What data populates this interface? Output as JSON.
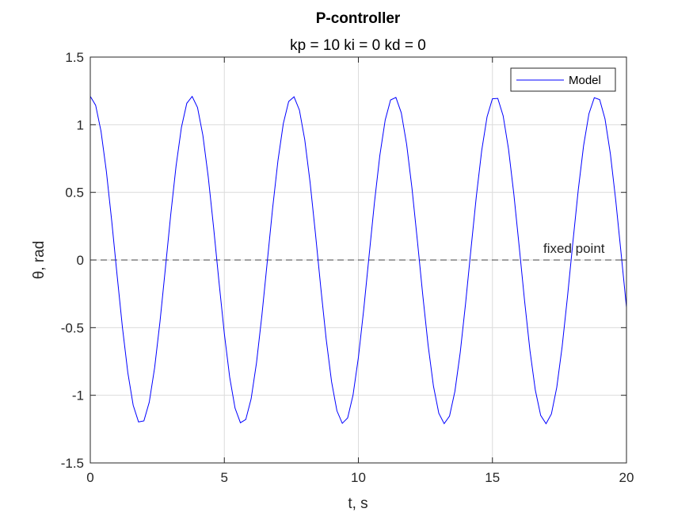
{
  "chart_data": {
    "type": "line",
    "title": "P-controller",
    "subtitle": "kp = 10 ki = 0 kd = 0",
    "xlabel": "t, s",
    "ylabel": "θ, rad",
    "xlim": [
      0,
      20
    ],
    "ylim": [
      -1.5,
      1.5
    ],
    "xticks": [
      "0",
      "5",
      "10",
      "15",
      "20"
    ],
    "yticks": [
      "-1.5",
      "-1",
      "-0.5",
      "0",
      "0.5",
      "1",
      "1.5"
    ],
    "grid": true,
    "legend": {
      "position": "top-right",
      "entries": [
        "Model"
      ]
    },
    "series": [
      {
        "name": "Model",
        "color": "#0000ff",
        "amplitude": 1.21,
        "omega": 1.664,
        "phase": 0,
        "t_start": 0,
        "t_end": 20,
        "sample_step": 0.2
      }
    ],
    "reference_line": {
      "y": 0,
      "style": "dashed",
      "color": "#404040",
      "label": "fixed point"
    }
  }
}
